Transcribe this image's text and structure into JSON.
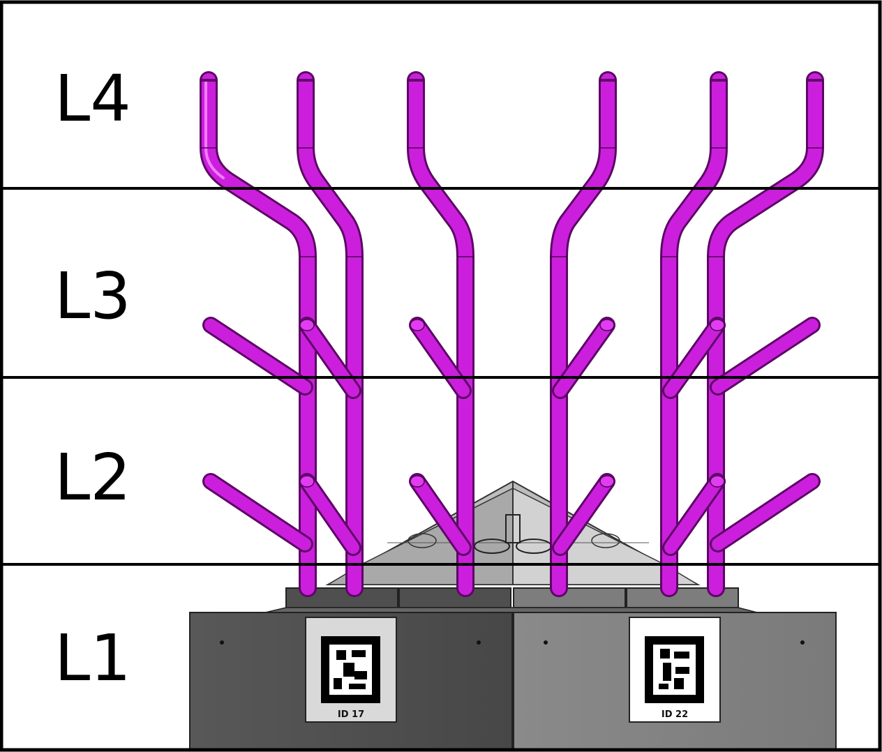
{
  "levels": [
    {
      "label": "L4"
    },
    {
      "label": "L3"
    },
    {
      "label": "L2"
    },
    {
      "label": "L1"
    }
  ],
  "markers": [
    {
      "caption": "ID 17",
      "shade": "#505050"
    },
    {
      "caption": "ID 22",
      "shade": "#8a8a8a"
    }
  ],
  "colors": {
    "pipe": "#cc1fdd",
    "pipe_highlight": "#f27cff",
    "pipe_shadow": "#7a0c85",
    "frame": "#000000",
    "base_dark": "#505050",
    "base_light": "#8a8a8a",
    "pyramid": "#bdbdbd"
  }
}
